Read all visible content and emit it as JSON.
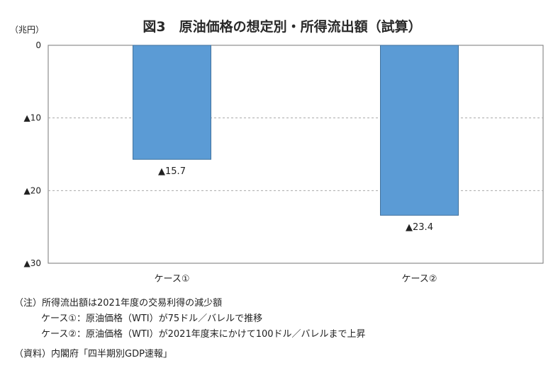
{
  "chart_data": {
    "type": "bar",
    "title": "図3　原油価格の想定別・所得流出額（試算）",
    "unit_label": "（兆円）",
    "categories": [
      "ケース①",
      "ケース②"
    ],
    "values": [
      -15.7,
      -23.4
    ],
    "value_labels": [
      "▲15.7",
      "▲23.4"
    ],
    "ylim": [
      -30,
      0
    ],
    "yticks": [
      0,
      -10,
      -20,
      -30
    ],
    "ytick_labels": [
      "0",
      "▲10",
      "▲20",
      "▲30"
    ],
    "bar_color": "#5b9bd5",
    "grid": "dashed horizontal",
    "legend": "none"
  },
  "notes": {
    "note_main": "（注）所得流出額は2021年度の交易利得の減少額",
    "note_case1": "ケース①：原油価格（WTI）が75ドル／バレルで推移",
    "note_case2": "ケース②：原油価格（WTI）が2021年度末にかけて100ドル／バレルまで上昇",
    "source": "（資料）内閣府「四半期別GDP速報」"
  }
}
